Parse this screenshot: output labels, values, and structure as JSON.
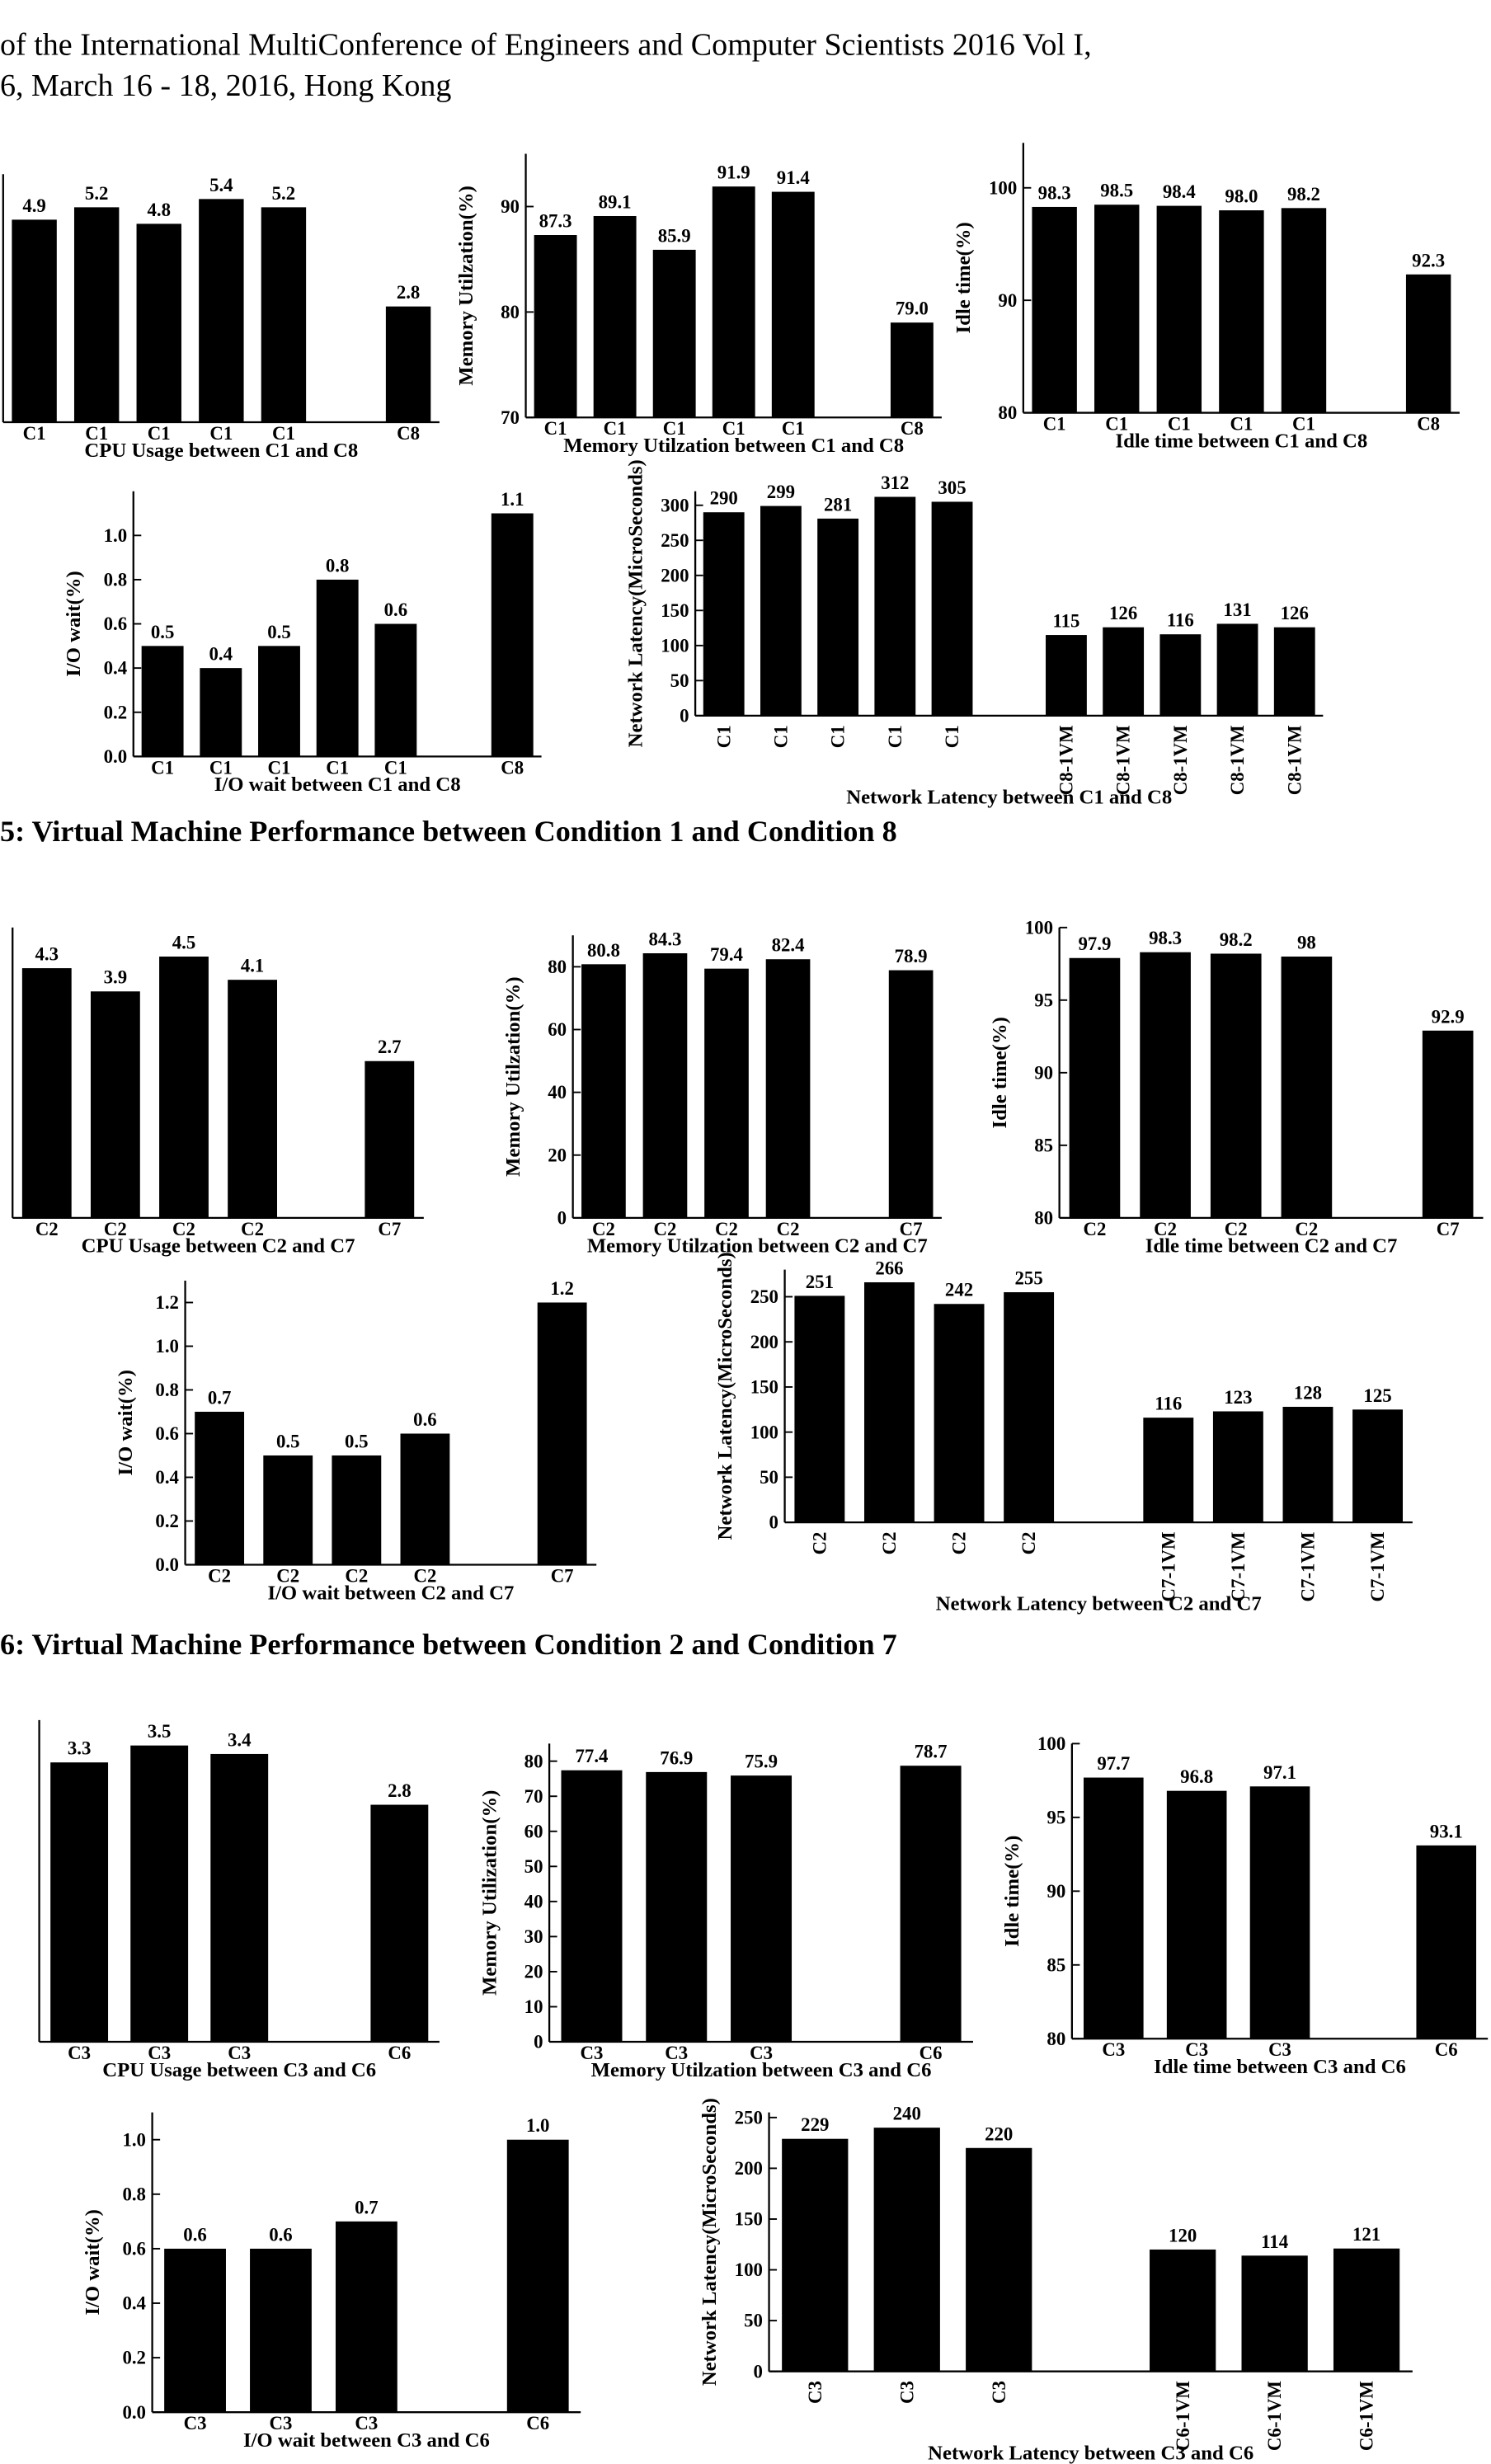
{
  "header": {
    "lines": [
      "of the International MultiConference of Engineers and Computer Scientists 2016 Vol I,",
      "6, March 16 - 18, 2016, Hong Kong"
    ]
  },
  "captions": [
    "5: Virtual Machine Performance between Condition 1 and Condition 8",
    "6: Virtual Machine Performance between Condition 2 and Condition 7"
  ],
  "chart_data": [
    {
      "type": "bar",
      "x_label": "CPU Usage between C1 and C8",
      "categories": [
        "C1",
        "C1",
        "C1",
        "C1",
        "C1",
        null,
        "C8"
      ],
      "values": [
        4.9,
        5.2,
        4.8,
        5.4,
        5.2,
        null,
        2.8
      ],
      "ylim": [
        0,
        6
      ],
      "color": "#000000"
    },
    {
      "type": "bar",
      "x_label": "Memory Utilzation between C1 and C8",
      "y_label": "Memory Utilzation(%)",
      "categories": [
        "C1",
        "C1",
        "C1",
        "C1",
        "C1",
        null,
        "C8"
      ],
      "values": [
        87.3,
        89.1,
        85.9,
        91.9,
        91.4,
        null,
        79.0
      ],
      "value_labels": [
        "87.3",
        "89.1",
        "85.9",
        "91.9",
        "91.4",
        null,
        "79.0"
      ],
      "ylim": [
        70,
        95
      ],
      "yticks": [
        70,
        80,
        90
      ],
      "color": "#000000"
    },
    {
      "type": "bar",
      "x_label": "Idle time between C1 and C8",
      "y_label": "Idle time(%)",
      "categories": [
        "C1",
        "C1",
        "C1",
        "C1",
        "C1",
        null,
        "C8"
      ],
      "values": [
        98.3,
        98.5,
        98.4,
        98.0,
        98.2,
        null,
        92.3
      ],
      "value_labels": [
        "98.3",
        "98.5",
        "98.4",
        "98.0",
        "98.2",
        null,
        "92.3"
      ],
      "ylim": [
        80,
        104
      ],
      "yticks": [
        80,
        90,
        100
      ],
      "color": "#000000"
    },
    {
      "type": "bar",
      "x_label": "I/O wait between C1 and C8",
      "y_label": "I/O wait(%)",
      "categories": [
        "C1",
        "C1",
        "C1",
        "C1",
        "C1",
        null,
        "C8"
      ],
      "values": [
        0.5,
        0.4,
        0.5,
        0.8,
        0.6,
        null,
        1.1
      ],
      "ylim": [
        0,
        1.2
      ],
      "yticks": [
        {
          "value": 0,
          "label": "0.0"
        },
        0.2,
        0.4,
        0.6,
        0.8,
        {
          "value": 1,
          "label": "1.0"
        }
      ],
      "color": "#000000"
    },
    {
      "type": "bar",
      "x_label": "Network Latency between C1 and C8",
      "y_label": "Network Latency(MicroSeconds)",
      "vertical_ticks": true,
      "categories": [
        "C1",
        "C1",
        "C1",
        "C1",
        "C1",
        null,
        "C8-1VM",
        "C8-1VM",
        "C8-1VM",
        "C8-1VM",
        "C8-1VM"
      ],
      "values": [
        290,
        299,
        281,
        312,
        305,
        null,
        115,
        126,
        116,
        131,
        126
      ],
      "ylim": [
        0,
        320
      ],
      "yticks": [
        0,
        50,
        100,
        150,
        200,
        250,
        300
      ],
      "color": "#000000"
    },
    {
      "type": "bar",
      "x_label": "CPU Usage between C2 and C7",
      "categories": [
        "C2",
        "C2",
        "C2",
        "C2",
        null,
        "C7"
      ],
      "values": [
        4.3,
        3.9,
        4.5,
        4.1,
        null,
        2.7
      ],
      "ylim": [
        0,
        5
      ],
      "color": "#000000"
    },
    {
      "type": "bar",
      "x_label": "Memory Utilzation between C2 and C7",
      "y_label": "Memory Utilzation(%)",
      "categories": [
        "C2",
        "C2",
        "C2",
        "C2",
        null,
        "C7"
      ],
      "values": [
        80.8,
        84.3,
        79.4,
        82.4,
        null,
        78.9
      ],
      "ylim": [
        0,
        90
      ],
      "yticks": [
        0,
        20,
        40,
        60,
        80
      ],
      "color": "#000000"
    },
    {
      "type": "bar",
      "x_label": "Idle time between C2 and C7",
      "y_label": "Idle time(%)",
      "categories": [
        "C2",
        "C2",
        "C2",
        "C2",
        null,
        "C7"
      ],
      "values": [
        97.9,
        98.3,
        98.2,
        98,
        null,
        92.9
      ],
      "ylim": [
        80,
        100
      ],
      "yticks": [
        80,
        85,
        90,
        95,
        100
      ],
      "color": "#000000"
    },
    {
      "type": "bar",
      "x_label": "I/O wait between C2 and C7",
      "y_label": "I/O wait(%)",
      "categories": [
        "C2",
        "C2",
        "C2",
        "C2",
        null,
        "C7"
      ],
      "values": [
        0.7,
        0.5,
        0.5,
        0.6,
        null,
        1.2
      ],
      "ylim": [
        0,
        1.3
      ],
      "yticks": [
        {
          "value": 0,
          "label": "0.0"
        },
        0.2,
        0.4,
        0.6,
        0.8,
        {
          "value": 1,
          "label": "1.0"
        },
        1.2
      ],
      "color": "#000000"
    },
    {
      "type": "bar",
      "x_label": "Network Latency between C2 and C7",
      "y_label": "Network Latency(MicroSeconds)",
      "vertical_ticks": true,
      "categories": [
        "C2",
        "C2",
        "C2",
        "C2",
        null,
        "C7-1VM",
        "C7-1VM",
        "C7-1VM",
        "C7-1VM"
      ],
      "values": [
        251,
        266,
        242,
        255,
        null,
        116,
        123,
        128,
        125
      ],
      "ylim": [
        0,
        280
      ],
      "yticks": [
        0,
        50,
        100,
        150,
        200,
        250
      ],
      "color": "#000000"
    },
    {
      "type": "bar",
      "x_label": "CPU Usage between C3 and C6",
      "categories": [
        "C3",
        "C3",
        "C3",
        null,
        "C6"
      ],
      "values": [
        3.3,
        3.5,
        3.4,
        null,
        2.8
      ],
      "ylim": [
        0,
        3.8
      ],
      "color": "#000000"
    },
    {
      "type": "bar",
      "x_label": "Memory Utilzation between C3 and C6",
      "y_label": "Memory Utilization(%)",
      "categories": [
        "C3",
        "C3",
        "C3",
        null,
        "C6"
      ],
      "values": [
        77.4,
        76.9,
        75.9,
        null,
        78.7
      ],
      "ylim": [
        0,
        85
      ],
      "yticks": [
        0,
        10,
        20,
        30,
        40,
        50,
        60,
        70,
        80
      ],
      "color": "#000000"
    },
    {
      "type": "bar",
      "x_label": "Idle time between C3 and C6",
      "y_label": "Idle time(%)",
      "categories": [
        "C3",
        "C3",
        "C3",
        null,
        "C6"
      ],
      "values": [
        97.7,
        96.8,
        97.1,
        null,
        93.1
      ],
      "ylim": [
        80,
        100
      ],
      "yticks": [
        80,
        85,
        90,
        95,
        100
      ],
      "color": "#000000"
    },
    {
      "type": "bar",
      "x_label": "I/O wait between C3 and C6",
      "y_label": "I/O wait(%)",
      "categories": [
        "C3",
        "C3",
        "C3",
        null,
        "C6"
      ],
      "values": [
        0.6,
        0.6,
        0.7,
        null,
        1.0
      ],
      "value_labels": [
        "0.6",
        "0.6",
        "0.7",
        null,
        "1.0"
      ],
      "ylim": [
        0,
        1.1
      ],
      "yticks": [
        {
          "value": 0,
          "label": "0.0"
        },
        0.2,
        0.4,
        0.6,
        0.8,
        {
          "value": 1,
          "label": "1.0"
        }
      ],
      "color": "#000000"
    },
    {
      "type": "bar",
      "x_label": "Network Latency between C3 and C6",
      "y_label": "Network Latency(MicroSeconds)",
      "vertical_ticks": true,
      "categories": [
        "C3",
        "C3",
        "C3",
        null,
        "C6-1VM",
        "C6-1VM",
        "C6-1VM"
      ],
      "values": [
        229,
        240,
        220,
        null,
        120,
        114,
        121
      ],
      "ylim": [
        0,
        255
      ],
      "yticks": [
        0,
        50,
        100,
        150,
        200,
        250
      ],
      "color": "#000000"
    }
  ]
}
